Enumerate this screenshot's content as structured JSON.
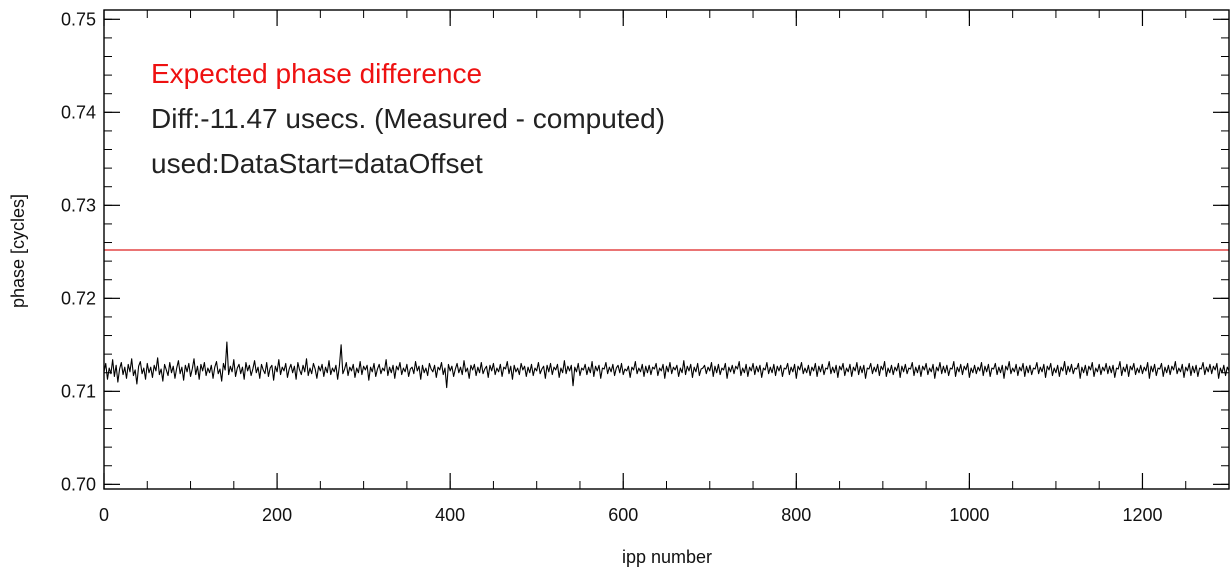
{
  "chart_data": {
    "type": "line",
    "title": "",
    "xlabel": "ipp number",
    "ylabel": "phase [cycles]",
    "xlim": [
      0,
      1300
    ],
    "ylim": [
      0.6995,
      0.751
    ],
    "x_ticks": [
      0,
      200,
      400,
      600,
      800,
      1000,
      1200
    ],
    "x_tick_labels": [
      "0",
      "200",
      "400",
      "600",
      "800",
      "1000",
      "1200"
    ],
    "x_minor_step": 50,
    "y_ticks": [
      0.7,
      0.71,
      0.72,
      0.73,
      0.74,
      0.75
    ],
    "y_tick_labels": [
      "0.70",
      "0.71",
      "0.72",
      "0.73",
      "0.74",
      "0.75"
    ],
    "y_minor_step": 0.002,
    "grid": false,
    "annotations": [
      {
        "text": "Expected phase difference",
        "color": "#ee1111"
      },
      {
        "text": "Diff:-11.47 usecs. (Measured - computed)",
        "color": "#222222"
      },
      {
        "text": "used:DataStart=dataOffset",
        "color": "#222222"
      }
    ],
    "series": [
      {
        "role": "expected",
        "color": "#dd2222",
        "y": 0.7252,
        "x_range": [
          0,
          1300
        ]
      },
      {
        "role": "measured",
        "color": "#000000",
        "x_start": 0,
        "x_step": 2,
        "mean": 0.7123,
        "values": [
          0.7121,
          0.713,
          0.7113,
          0.7125,
          0.7119,
          0.7134,
          0.7116,
          0.7128,
          0.711,
          0.7124,
          0.7131,
          0.7118,
          0.7126,
          0.7114,
          0.7129,
          0.7121,
          0.7135,
          0.7117,
          0.7123,
          0.7108,
          0.7127,
          0.7132,
          0.7119,
          0.7125,
          0.7113,
          0.713,
          0.712,
          0.7126,
          0.7115,
          0.7128,
          0.7122,
          0.7136,
          0.7118,
          0.7124,
          0.7111,
          0.7129,
          0.7123,
          0.7117,
          0.7131,
          0.712,
          0.7127,
          0.7114,
          0.7125,
          0.7133,
          0.7119,
          0.7126,
          0.7112,
          0.7128,
          0.7121,
          0.713,
          0.7116,
          0.7124,
          0.7135,
          0.7118,
          0.7127,
          0.7113,
          0.7129,
          0.7122,
          0.7131,
          0.7117,
          0.7125,
          0.712,
          0.7128,
          0.7114,
          0.7126,
          0.7132,
          0.7119,
          0.7124,
          0.7111,
          0.713,
          0.7123,
          0.7153,
          0.7118,
          0.7127,
          0.7121,
          0.7134,
          0.7116,
          0.7125,
          0.7129,
          0.7119,
          0.7126,
          0.7113,
          0.7131,
          0.7122,
          0.7128,
          0.7117,
          0.7124,
          0.7133,
          0.712,
          0.7126,
          0.7114,
          0.7129,
          0.7123,
          0.7119,
          0.7131,
          0.7116,
          0.7125,
          0.7128,
          0.7112,
          0.7127,
          0.7121,
          0.7134,
          0.7118,
          0.7126,
          0.7122,
          0.713,
          0.7115,
          0.7124,
          0.7129,
          0.712,
          0.7127,
          0.7113,
          0.7131,
          0.7123,
          0.7118,
          0.7128,
          0.7121,
          0.7135,
          0.7117,
          0.7125,
          0.7119,
          0.713,
          0.7124,
          0.7114,
          0.7127,
          0.7122,
          0.7129,
          0.7116,
          0.7126,
          0.712,
          0.7133,
          0.7118,
          0.7125,
          0.7121,
          0.7128,
          0.7113,
          0.7127,
          0.715,
          0.7119,
          0.7124,
          0.7131,
          0.7117,
          0.7126,
          0.7122,
          0.7129,
          0.7115,
          0.7125,
          0.712,
          0.7132,
          0.7118,
          0.7127,
          0.7123,
          0.7128,
          0.7112,
          0.7126,
          0.7121,
          0.713,
          0.7116,
          0.7124,
          0.7129,
          0.7119,
          0.7125,
          0.7122,
          0.7134,
          0.7117,
          0.7126,
          0.712,
          0.7128,
          0.7114,
          0.7127,
          0.7123,
          0.7131,
          0.7118,
          0.7125,
          0.7121,
          0.7129,
          0.7116,
          0.7124,
          0.7126,
          0.7119,
          0.7132,
          0.7122,
          0.7127,
          0.7113,
          0.7128,
          0.712,
          0.7125,
          0.7117,
          0.713,
          0.7124,
          0.7121,
          0.7128,
          0.7115,
          0.7126,
          0.7123,
          0.7131,
          0.7118,
          0.7125,
          0.7104,
          0.7129,
          0.7122,
          0.7127,
          0.7116,
          0.7124,
          0.713,
          0.712,
          0.7126,
          0.7118,
          0.7133,
          0.7121,
          0.7125,
          0.7114,
          0.7128,
          0.7123,
          0.7129,
          0.7117,
          0.7126,
          0.712,
          0.7131,
          0.7119,
          0.7124,
          0.7127,
          0.7115,
          0.7128,
          0.7122,
          0.713,
          0.7118,
          0.7125,
          0.7121,
          0.7129,
          0.7116,
          0.7126,
          0.7124,
          0.7132,
          0.7119,
          0.7127,
          0.7113,
          0.7128,
          0.7121,
          0.7125,
          0.7118,
          0.713,
          0.7123,
          0.7127,
          0.7116,
          0.7126,
          0.712,
          0.7129,
          0.7117,
          0.7125,
          0.7122,
          0.7131,
          0.7119,
          0.7124,
          0.7127,
          0.7114,
          0.7128,
          0.7121,
          0.713,
          0.7118,
          0.7126,
          0.7123,
          0.7129,
          0.7115,
          0.7125,
          0.712,
          0.7133,
          0.7119,
          0.7127,
          0.7122,
          0.7128,
          0.7106,
          0.7126,
          0.7121,
          0.713,
          0.7117,
          0.7125,
          0.7123,
          0.7129,
          0.7118,
          0.7126,
          0.712,
          0.7132,
          0.7116,
          0.7127,
          0.7122,
          0.7128,
          0.7114,
          0.7125,
          0.7124,
          0.7131,
          0.7119,
          0.7126,
          0.7121,
          0.7129,
          0.7117,
          0.7125,
          0.7128,
          0.712,
          0.713,
          0.7118,
          0.7124,
          0.7122,
          0.7127,
          0.7115,
          0.7126,
          0.7123,
          0.7132,
          0.7119,
          0.7125,
          0.7121,
          0.7129,
          0.7116,
          0.7127,
          0.712,
          0.7128,
          0.7118,
          0.7126,
          0.7124,
          0.713,
          0.7117,
          0.7125,
          0.7122,
          0.7129,
          0.7114,
          0.7127,
          0.7121,
          0.7131,
          0.7119,
          0.7126,
          0.7123,
          0.7128,
          0.7116,
          0.7125,
          0.712,
          0.7133,
          0.7118,
          0.7127,
          0.7122,
          0.7129,
          0.7115,
          0.7126,
          0.7121,
          0.713,
          0.7117,
          0.7124,
          0.7125,
          0.7128,
          0.7119,
          0.7126,
          0.7122,
          0.7131,
          0.7116,
          0.7127,
          0.712,
          0.7129,
          0.7118,
          0.7125,
          0.7123,
          0.713,
          0.7114,
          0.7126,
          0.7121,
          0.7128,
          0.7119,
          0.7127,
          0.7124,
          0.7132,
          0.7117,
          0.7125,
          0.712,
          0.7129,
          0.7116,
          0.7126,
          0.7122,
          0.713,
          0.7118,
          0.7127,
          0.7121,
          0.7128,
          0.7115,
          0.7125,
          0.7123,
          0.7131,
          0.7119,
          0.7126,
          0.712,
          0.7129,
          0.7117,
          0.7127,
          0.7122,
          0.7128,
          0.7116,
          0.7125,
          0.7124,
          0.713,
          0.7118,
          0.7126,
          0.7121,
          0.7129,
          0.7114,
          0.7127,
          0.7123,
          0.7131,
          0.7119,
          0.7125,
          0.712,
          0.7128,
          0.7117,
          0.7126,
          0.7122,
          0.713,
          0.7116,
          0.7127,
          0.7121,
          0.7129,
          0.7118,
          0.7125,
          0.7124,
          0.7132,
          0.7119,
          0.7126,
          0.712,
          0.7128,
          0.7115,
          0.7127,
          0.7123,
          0.713,
          0.7117,
          0.7125,
          0.7121,
          0.7129,
          0.7116,
          0.7126,
          0.7122,
          0.7131,
          0.7118,
          0.7127,
          0.712,
          0.7128,
          0.7114,
          0.7125,
          0.7124,
          0.713,
          0.7119,
          0.7126,
          0.7121,
          0.7129,
          0.7117,
          0.7127,
          0.7123,
          0.7132,
          0.7116,
          0.7125,
          0.712,
          0.7128,
          0.7118,
          0.7126,
          0.7122,
          0.713,
          0.7115,
          0.7127,
          0.7121,
          0.7129,
          0.7119,
          0.7125,
          0.7124,
          0.7131,
          0.7117,
          0.7126,
          0.712,
          0.7128,
          0.7116,
          0.7127,
          0.7123,
          0.713,
          0.7118,
          0.7125,
          0.7121,
          0.7129,
          0.7114,
          0.7126,
          0.7122,
          0.7131,
          0.7119,
          0.7127,
          0.712,
          0.7128,
          0.7117,
          0.7125,
          0.7124,
          0.7132,
          0.7116,
          0.7126,
          0.7121,
          0.7129,
          0.7118,
          0.7127,
          0.7123,
          0.713,
          0.7115,
          0.7125,
          0.712,
          0.7128,
          0.7119,
          0.7126,
          0.7122,
          0.7131,
          0.7117,
          0.7127,
          0.7121,
          0.7129,
          0.7116,
          0.7125,
          0.7124,
          0.713,
          0.7118,
          0.7126,
          0.712,
          0.7128,
          0.7114,
          0.7127,
          0.7123,
          0.7132,
          0.7119,
          0.7125,
          0.7121,
          0.7129,
          0.7117,
          0.7126,
          0.7122,
          0.713,
          0.7116,
          0.7127,
          0.712,
          0.7128,
          0.7118,
          0.7125,
          0.7124,
          0.7131,
          0.7119,
          0.7126,
          0.7121,
          0.7129,
          0.7115,
          0.7127,
          0.7123,
          0.713,
          0.7117,
          0.7125,
          0.712,
          0.7128,
          0.7116,
          0.7126,
          0.7122,
          0.7132,
          0.7118,
          0.7127,
          0.7121,
          0.7129,
          0.7119,
          0.7125,
          0.7124,
          0.713,
          0.7114,
          0.7126,
          0.712,
          0.7128,
          0.7117,
          0.7127,
          0.7123,
          0.7131,
          0.7116,
          0.7125,
          0.7121,
          0.7129,
          0.7118,
          0.7126,
          0.7122,
          0.713,
          0.7119,
          0.7127,
          0.712,
          0.7128,
          0.7115,
          0.7125,
          0.7124,
          0.7132,
          0.7117,
          0.7126,
          0.7121,
          0.7129,
          0.7116,
          0.7127,
          0.7123,
          0.713,
          0.7118,
          0.7125,
          0.712,
          0.7128,
          0.7119,
          0.7126,
          0.7122,
          0.7131,
          0.7114,
          0.7127,
          0.7121,
          0.7129,
          0.7117,
          0.7125,
          0.7124,
          0.713,
          0.7116,
          0.7126,
          0.712,
          0.7128,
          0.7118,
          0.7127,
          0.7123,
          0.7132,
          0.7119,
          0.7125,
          0.7121,
          0.7129,
          0.7115,
          0.7126,
          0.7122,
          0.713,
          0.7117,
          0.7127,
          0.712,
          0.7128,
          0.7116,
          0.7125,
          0.7124,
          0.7131,
          0.7118,
          0.7126,
          0.7121,
          0.7129,
          0.7119,
          0.7127,
          0.7123,
          0.713,
          0.7114,
          0.7125,
          0.712,
          0.7128,
          0.7117,
          0.7126,
          0.7122,
          0.7132,
          0.7116,
          0.7127,
          0.7121,
          0.7129,
          0.7118,
          0.7125,
          0.7124,
          0.713,
          0.7119,
          0.7126
        ]
      }
    ]
  }
}
